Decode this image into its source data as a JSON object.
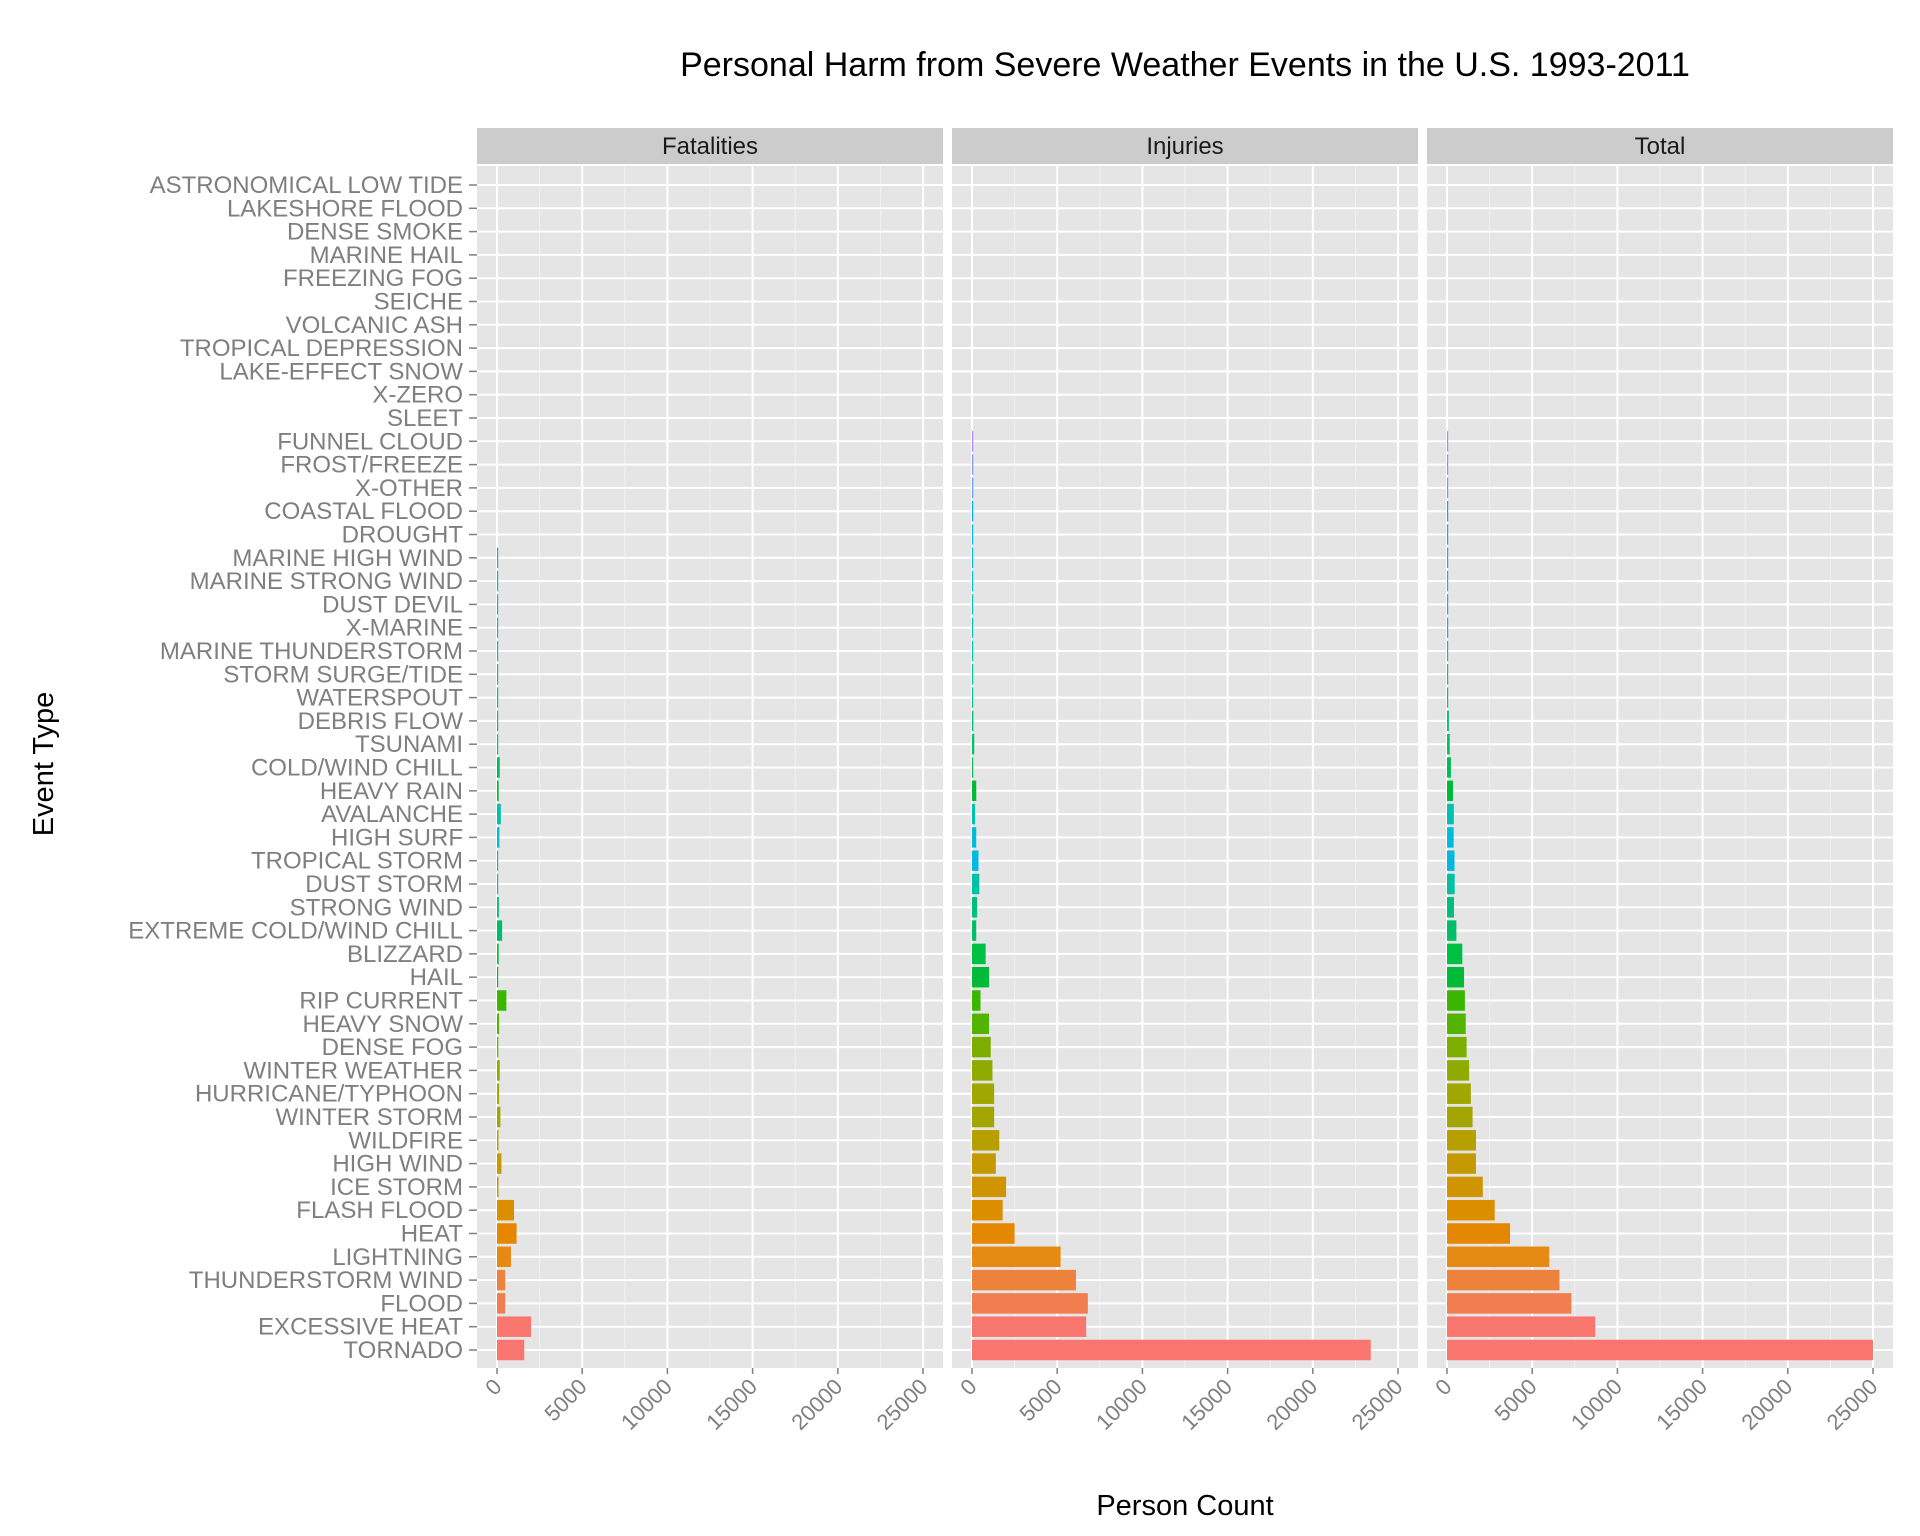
{
  "chart_data": {
    "type": "bar",
    "orientation": "horizontal",
    "title": "Personal Harm from Severe Weather Events in the U.S. 1993-2011",
    "xlabel": "Person Count",
    "ylabel": "Event Type",
    "xlim": [
      0,
      25000
    ],
    "xticks": [
      "0",
      "5000",
      "10000",
      "15000",
      "20000",
      "25000"
    ],
    "grid": true,
    "legend": "none",
    "categories": [
      "ASTRONOMICAL LOW TIDE",
      "LAKESHORE FLOOD",
      "DENSE SMOKE",
      "MARINE HAIL",
      "FREEZING FOG",
      "SEICHE",
      "VOLCANIC ASH",
      "TROPICAL DEPRESSION",
      "LAKE-EFFECT SNOW",
      "X-ZERO",
      "SLEET",
      "FUNNEL CLOUD",
      "FROST/FREEZE",
      "X-OTHER",
      "COASTAL FLOOD",
      "DROUGHT",
      "MARINE HIGH WIND",
      "MARINE STRONG WIND",
      "DUST DEVIL",
      "X-MARINE",
      "MARINE THUNDERSTORM",
      "STORM SURGE/TIDE",
      "WATERSPOUT",
      "DEBRIS FLOW",
      "TSUNAMI",
      "COLD/WIND CHILL",
      "HEAVY RAIN",
      "AVALANCHE",
      "HIGH SURF",
      "TROPICAL STORM",
      "DUST STORM",
      "STRONG WIND",
      "EXTREME COLD/WIND CHILL",
      "BLIZZARD",
      "HAIL",
      "RIP CURRENT",
      "HEAVY SNOW",
      "DENSE FOG",
      "WINTER WEATHER",
      "HURRICANE/TYPHOON",
      "WINTER STORM",
      "WILDFIRE",
      "HIGH WIND",
      "ICE STORM",
      "FLASH FLOOD",
      "HEAT",
      "LIGHTNING",
      "THUNDERSTORM WIND",
      "FLOOD",
      "EXCESSIVE HEAT",
      "TORNADO"
    ],
    "colors": [
      "#c77cff",
      "#c77cff",
      "#c77cff",
      "#c77cff",
      "#c77cff",
      "#c77cff",
      "#c77cff",
      "#c77cff",
      "#c77cff",
      "#c77cff",
      "#b983ff",
      "#a58aff",
      "#8494ff",
      "#619cff",
      "#00a9ff",
      "#00b4ef",
      "#00bae0",
      "#00bdd4",
      "#00bfc4",
      "#00c0b8",
      "#00c1aa",
      "#00c19a",
      "#00c08b",
      "#00bf7d",
      "#00be6c",
      "#00bc59",
      "#00ba38",
      "#00c0af",
      "#00bcd8",
      "#00b9e3",
      "#00c1a3",
      "#00bf7d",
      "#00be67",
      "#00c043",
      "#00ba38",
      "#39b600",
      "#53b400",
      "#7cae00",
      "#8fab00",
      "#9fa700",
      "#a3a500",
      "#b79f00",
      "#c49a00",
      "#d09400",
      "#db8e00",
      "#e58700",
      "#e78a13",
      "#ec823c",
      "#f17e4f",
      "#f8766d",
      "#f8766d"
    ],
    "series": [
      {
        "name": "Fatalities",
        "values": [
          0,
          0,
          0,
          0,
          0,
          0,
          0,
          0,
          0,
          0,
          0,
          0,
          0,
          0,
          0,
          0,
          24,
          14,
          2,
          10,
          19,
          24,
          3,
          38,
          33,
          160,
          98,
          224,
          142,
          58,
          22,
          110,
          300,
          100,
          15,
          550,
          125,
          80,
          160,
          125,
          200,
          90,
          260,
          90,
          1000,
          1150,
          820,
          480,
          480,
          2000,
          1600
        ]
      },
      {
        "name": "Injuries",
        "values": [
          0,
          0,
          0,
          0,
          0,
          0,
          0,
          0,
          0,
          0,
          0,
          40,
          30,
          20,
          10,
          30,
          30,
          20,
          50,
          30,
          30,
          50,
          40,
          80,
          130,
          70,
          250,
          180,
          250,
          380,
          430,
          300,
          250,
          800,
          1000,
          500,
          1000,
          1100,
          1200,
          1300,
          1300,
          1600,
          1400,
          2000,
          1800,
          2500,
          5200,
          6100,
          6800,
          6700,
          23400
        ]
      },
      {
        "name": "Total",
        "values": [
          0,
          0,
          0,
          0,
          0,
          0,
          0,
          0,
          0,
          0,
          0,
          40,
          30,
          20,
          10,
          30,
          50,
          40,
          50,
          40,
          50,
          70,
          40,
          110,
          160,
          230,
          350,
          400,
          390,
          440,
          450,
          410,
          550,
          900,
          1000,
          1050,
          1100,
          1150,
          1300,
          1400,
          1500,
          1700,
          1700,
          2100,
          2800,
          3700,
          6000,
          6600,
          7300,
          8700,
          25000
        ]
      }
    ]
  }
}
